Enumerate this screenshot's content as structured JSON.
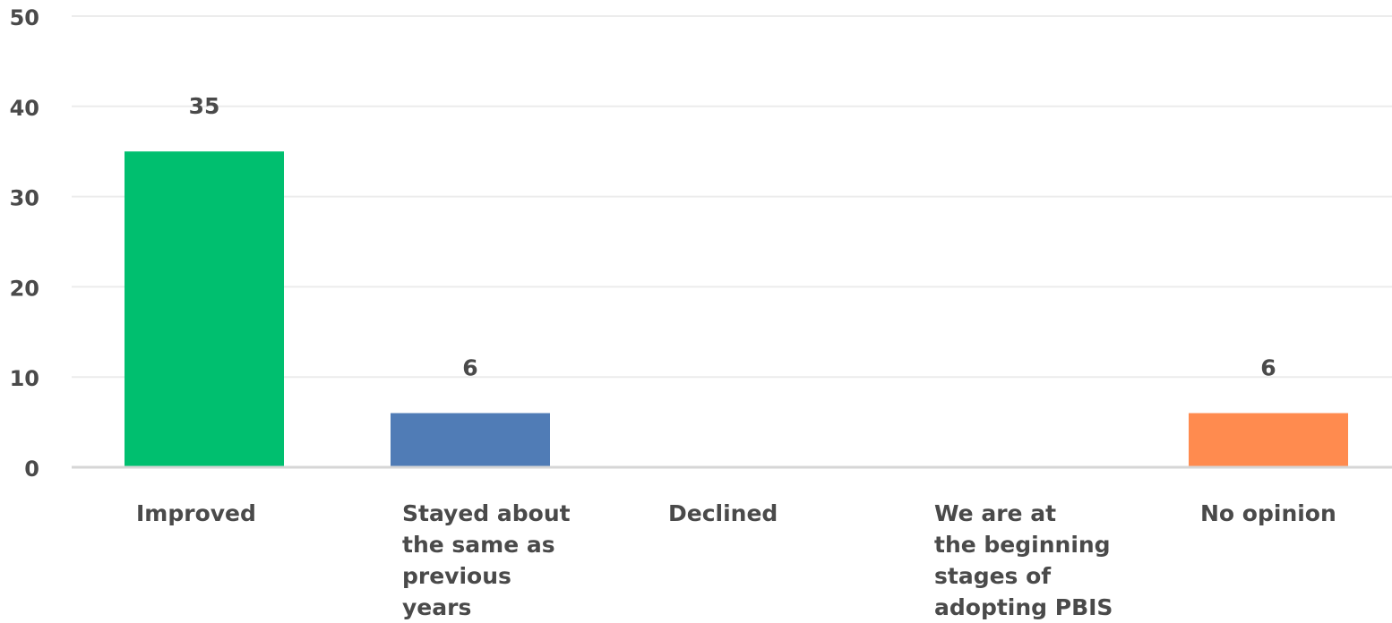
{
  "chart_data": {
    "type": "bar",
    "categories": [
      [
        "Improved"
      ],
      [
        "Stayed about",
        "the same as",
        "previous",
        "years"
      ],
      [
        "Declined"
      ],
      [
        "We are at",
        "the beginning",
        "stages of",
        "adopting PBIS"
      ],
      [
        "No opinion"
      ]
    ],
    "values": [
      35,
      6,
      0,
      0,
      6
    ],
    "data_labels": [
      "35",
      "6",
      "",
      "",
      "6"
    ],
    "colors": [
      "#00bf6f",
      "#507cb6",
      "#f9be00",
      "#6bc8cd",
      "#ff8b4f"
    ],
    "ylim": [
      0,
      50
    ],
    "yticks": [
      0,
      10,
      20,
      30,
      40,
      50
    ],
    "grid": true,
    "legend": false,
    "title": "",
    "xlabel": "",
    "ylabel": ""
  }
}
